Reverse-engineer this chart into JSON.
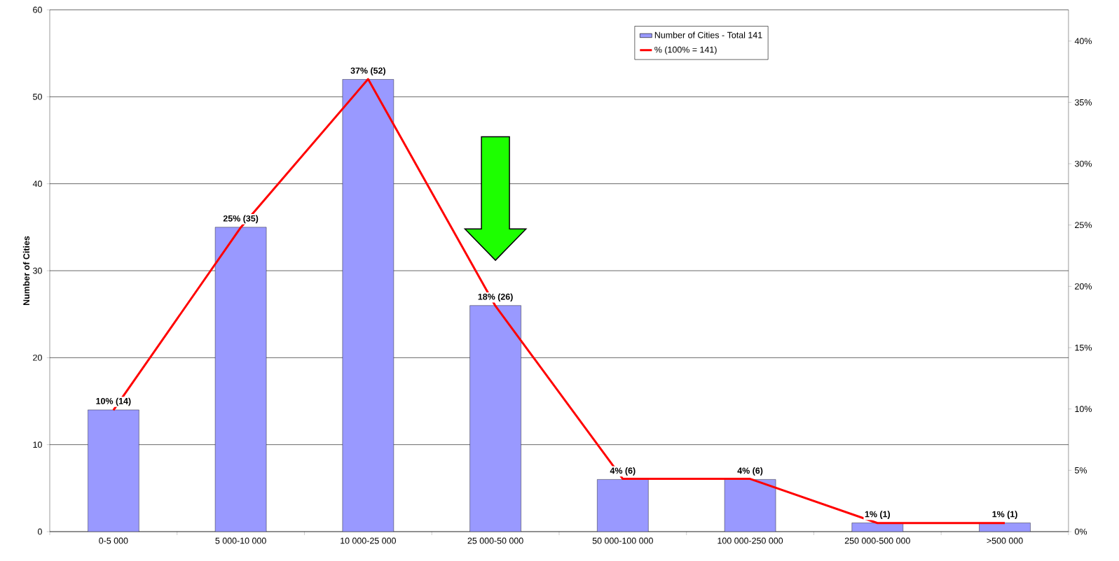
{
  "chart_data": {
    "type": "bar",
    "ylabel": "Number of Cities",
    "categories": [
      "0-5 000",
      "5 000-10 000",
      "10 000-25 000",
      "25 000-50 000",
      "50 000-100 000",
      "100 000-250 000",
      "250 000-500 000",
      ">500 000"
    ],
    "series": [
      {
        "name": "Number of Cities - Total 141",
        "color": "#9999ff",
        "values": [
          14,
          35,
          52,
          26,
          6,
          6,
          1,
          1
        ],
        "value_labels": [
          "10% (14)",
          "25% (35)",
          "37% (52)",
          "18% (26)",
          "4% (6)",
          "4% (6)",
          "1% (1)",
          "1% (1)"
        ]
      },
      {
        "name": "% (100% = 141)",
        "type": "line",
        "axis": "y2",
        "color": "#ff0000",
        "values": [
          9.9,
          24.8,
          36.9,
          18.4,
          4.3,
          4.3,
          0.7,
          0.7
        ]
      }
    ],
    "ylim": [
      0,
      60
    ],
    "yticks": [
      0,
      10,
      20,
      30,
      40,
      50,
      60
    ],
    "y2lim": [
      0,
      42.55
    ],
    "y2ticks": [
      {
        "value": 0,
        "label": "0%"
      },
      {
        "value": 5,
        "label": "5%"
      },
      {
        "value": 10,
        "label": "10%"
      },
      {
        "value": 15,
        "label": "15%"
      },
      {
        "value": 20,
        "label": "20%"
      },
      {
        "value": 25,
        "label": "25%"
      },
      {
        "value": 30,
        "label": "30%"
      },
      {
        "value": 35,
        "label": "35%"
      },
      {
        "value": 40,
        "label": "40%"
      }
    ],
    "grid": "y",
    "legend": "top right"
  }
}
